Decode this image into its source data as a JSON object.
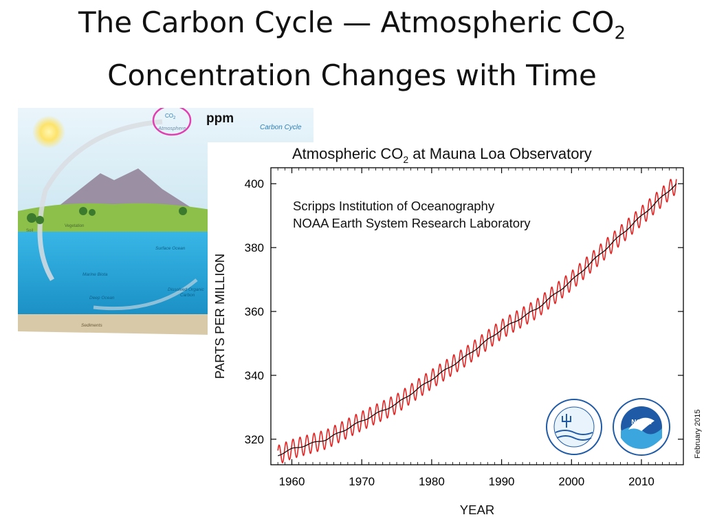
{
  "slide": {
    "title_part1": "The Carbon Cycle — Atmospheric CO",
    "title_sub": "2",
    "title_line2": "Concentration Changes with Time"
  },
  "diagram": {
    "heading": "Carbon Cycle",
    "co2": "CO",
    "co2_sub": "2",
    "atmosphere": "Atmosphere",
    "vegetation": "Vegetation",
    "soil": "Soil",
    "surface_ocean": "Surface Ocean",
    "marine_biota": "Marine Biota",
    "deep_ocean": "Deep Ocean",
    "dissolved_organic": "Dissolved Organic",
    "carbon": "Carbon",
    "sediments": "Sediments",
    "ppm_label": "ppm",
    "colors": {
      "sky": "#cfe7f2",
      "ocean": "#1ea6d8",
      "land": "#8cc04b",
      "mountain": "#9b8fa3",
      "circle": "#e040b0"
    }
  },
  "chart_data": {
    "type": "line",
    "title": "Atmospheric CO",
    "title_sub": "2",
    "title_suffix": " at Mauna Loa Observatory",
    "ylabel": "PARTS PER MILLION",
    "xlabel": "YEAR",
    "annotation_line1": "Scripps Institution of Oceanography",
    "annotation_line2": "NOAA Earth System Research Laboratory",
    "date_note": "February 2015",
    "xlim": [
      1957,
      2016
    ],
    "ylim": [
      312,
      405
    ],
    "x_ticks": [
      1960,
      1970,
      1980,
      1990,
      2000,
      2010
    ],
    "y_ticks": [
      320,
      340,
      360,
      380,
      400
    ],
    "grid": false,
    "seasonal_amplitude": 3,
    "series": [
      {
        "color": "#e32222",
        "style": "monthly",
        "x": [
          1958,
          1960,
          1965,
          1970,
          1975,
          1980,
          1985,
          1990,
          1995,
          2000,
          2005,
          2010,
          2015
        ],
        "values": [
          315.0,
          316.9,
          320.0,
          325.7,
          331.1,
          338.8,
          346.1,
          354.4,
          360.8,
          369.6,
          379.8,
          389.9,
          400.0
        ]
      },
      {
        "color": "#111111",
        "style": "trend",
        "x": [
          1958,
          1960,
          1965,
          1970,
          1975,
          1980,
          1985,
          1990,
          1995,
          2000,
          2005,
          2010,
          2015
        ],
        "values": [
          315.0,
          316.9,
          320.0,
          325.7,
          331.1,
          338.8,
          346.1,
          354.4,
          360.8,
          369.6,
          379.8,
          389.9,
          400.0
        ]
      }
    ]
  }
}
